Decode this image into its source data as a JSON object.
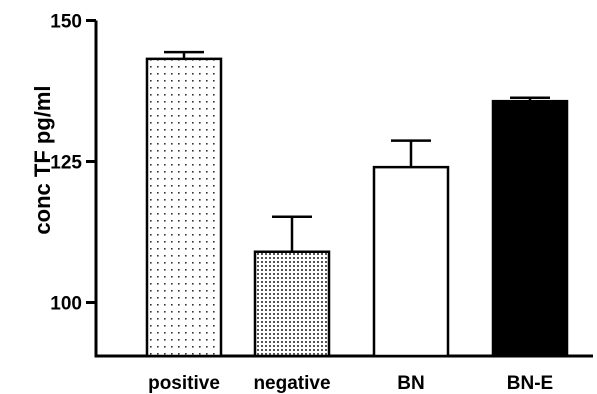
{
  "chart_data": {
    "type": "bar",
    "title": "",
    "xlabel": "",
    "ylabel": "conc TF pg/ml",
    "ylim": [
      90,
      150
    ],
    "yticks": [
      100,
      125,
      150
    ],
    "grid": false,
    "categories": [
      "positive",
      "negative",
      "BN",
      "BN-E"
    ],
    "values": [
      143.2,
      109.0,
      124.0,
      135.7
    ],
    "errors": [
      1.2,
      6.2,
      4.7,
      0.6
    ],
    "fills": [
      "sparse-dots",
      "dense-dots",
      "white",
      "black"
    ]
  }
}
